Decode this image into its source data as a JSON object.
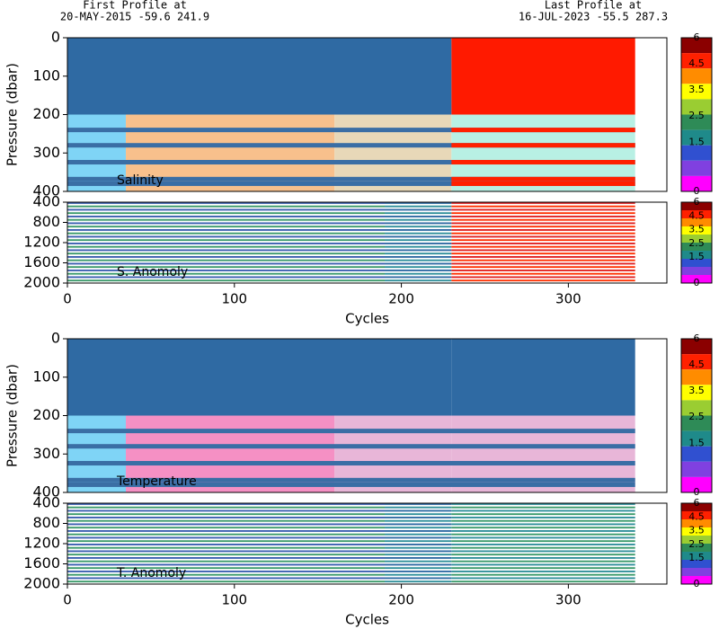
{
  "header": {
    "first_title": "First Profile at",
    "first_info": "20-MAY-2015   -59.6 241.9",
    "last_title": "Last Profile at",
    "last_info": "16-JUL-2023   -55.5 287.3"
  },
  "chart_data": [
    {
      "type": "heatmap",
      "label": "Salinity",
      "ylabel": "Pressure (dbar)",
      "xlim": [
        0,
        359
      ],
      "ylim": [
        400,
        0
      ],
      "yticks": [
        0,
        100,
        200,
        300,
        400
      ],
      "colorbar_ticks": [
        6,
        4.5,
        3.5,
        2.5,
        1.5,
        0
      ]
    },
    {
      "type": "heatmap",
      "label": "S. Anomoly",
      "xlabel": "Cycles",
      "xlim": [
        0,
        359
      ],
      "xticks": [
        0,
        100,
        200,
        300
      ],
      "ylim": [
        2000,
        400
      ],
      "yticks": [
        400,
        800,
        1200,
        1600,
        2000
      ],
      "colorbar_ticks": [
        6,
        4.5,
        3.5,
        2.5,
        1.5,
        0
      ]
    },
    {
      "type": "heatmap",
      "label": "Temperature",
      "ylabel": "Pressure (dbar)",
      "xlim": [
        0,
        359
      ],
      "ylim": [
        400,
        0
      ],
      "yticks": [
        0,
        100,
        200,
        300,
        400
      ],
      "colorbar_ticks": [
        6,
        4.5,
        3.5,
        2.5,
        1.5,
        0
      ]
    },
    {
      "type": "heatmap",
      "label": "T. Anomoly",
      "xlabel": "Cycles",
      "xlim": [
        0,
        359
      ],
      "xticks": [
        0,
        100,
        200,
        300
      ],
      "ylim": [
        2000,
        400
      ],
      "yticks": [
        400,
        800,
        1200,
        1600,
        2000
      ],
      "colorbar_ticks": [
        6,
        4.5,
        3.5,
        2.5,
        1.5,
        0
      ]
    }
  ]
}
